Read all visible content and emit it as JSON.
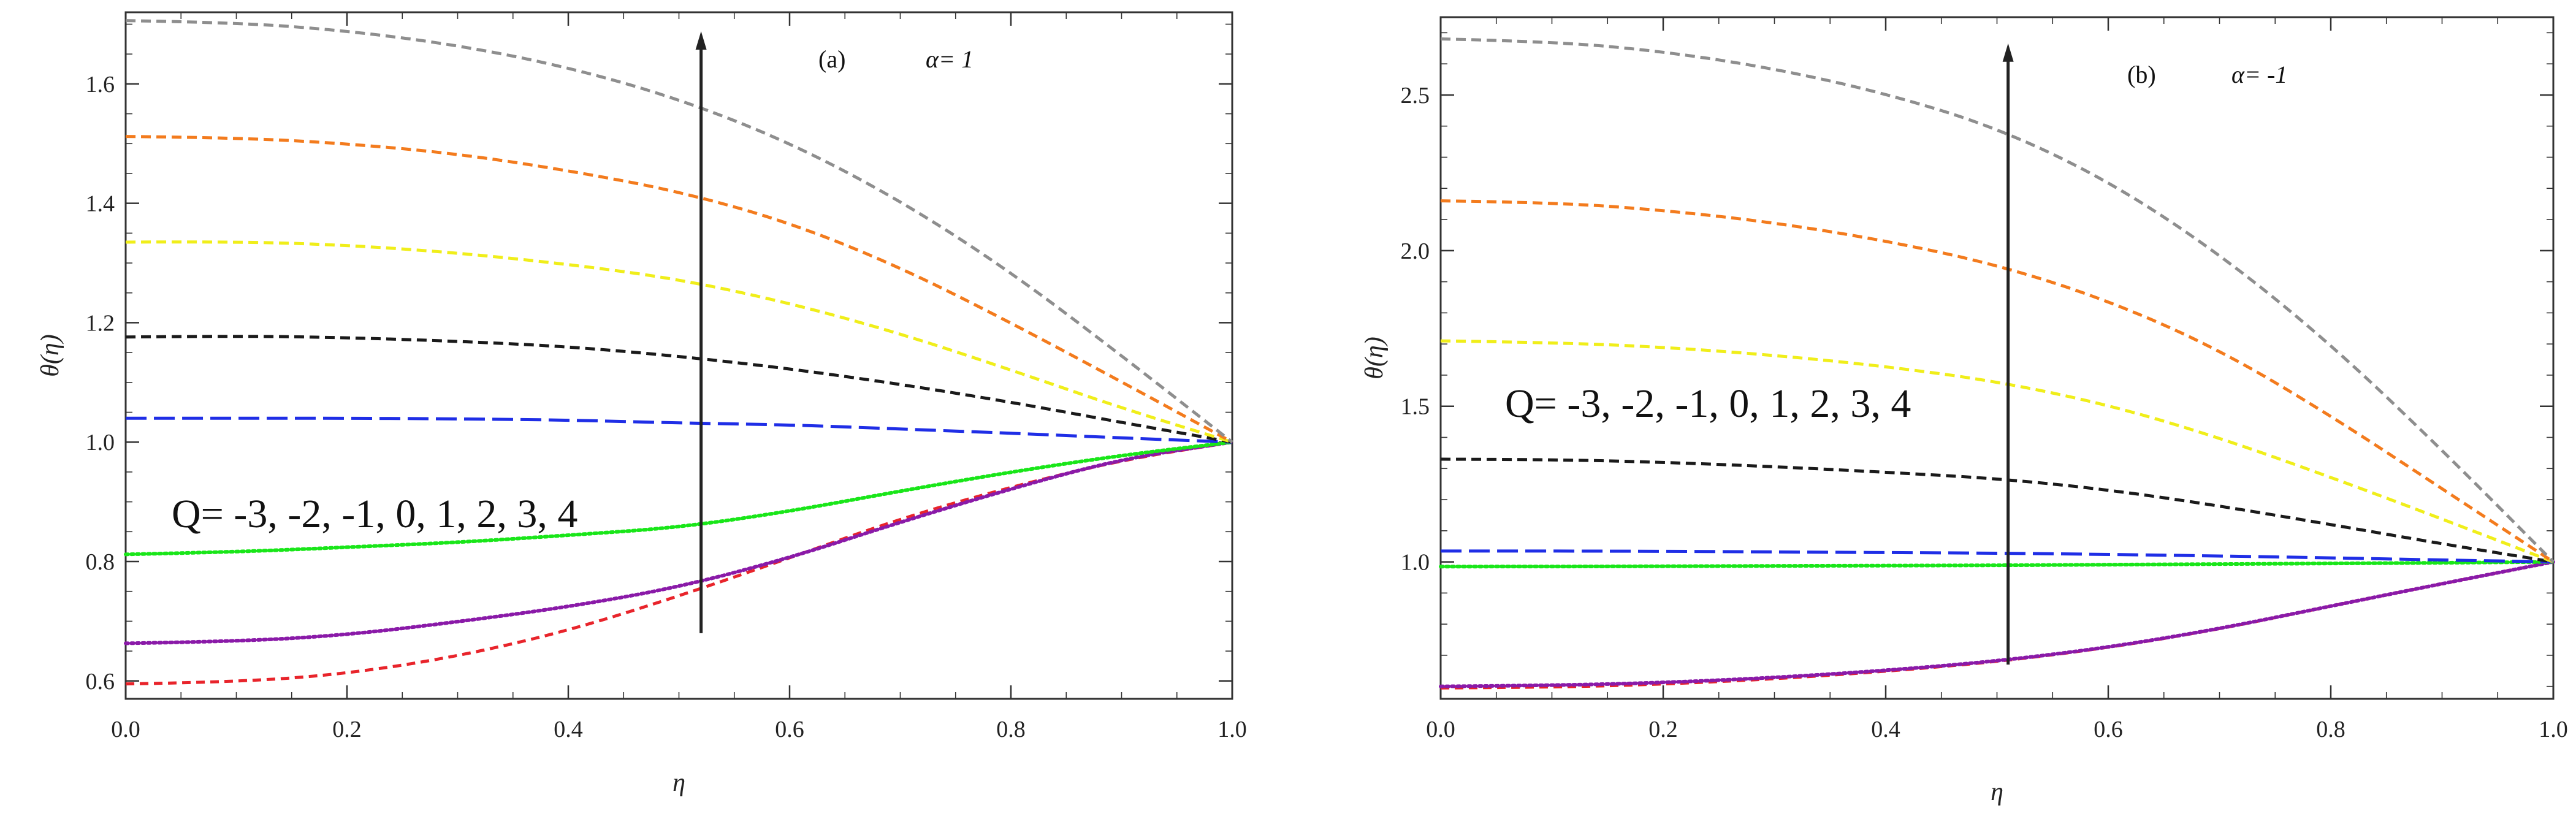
{
  "chart_data": [
    {
      "type": "line",
      "panel_label": "(a)",
      "alpha_label": "α= 1",
      "q_annotation": "Q= -3, -2, -1, 0, 1, 2, 3, 4",
      "xlabel": "η",
      "ylabel": "θ(η)",
      "xlim": [
        0.0,
        1.0
      ],
      "ylim": [
        0.57,
        1.72
      ],
      "xticks": [
        "0.0",
        "0.2",
        "0.4",
        "0.6",
        "0.8",
        "1.0"
      ],
      "yticks": [
        "0.6",
        "0.8",
        "1.0",
        "1.2",
        "1.4",
        "1.6"
      ],
      "arrow": {
        "x": 0.52,
        "y_from": 0.68,
        "y_to": 1.68
      },
      "series": [
        {
          "name": "Q=-3",
          "color": "#e8242b",
          "dash": "short",
          "values": [
            0.595,
            0.598,
            0.612,
            0.641,
            0.684,
            0.742,
            0.806,
            0.872,
            0.925,
            0.97,
            1.0
          ]
        },
        {
          "name": "Q=-2",
          "color": "#8a1aa8",
          "dash": "dot",
          "values": [
            0.663,
            0.666,
            0.677,
            0.699,
            0.724,
            0.757,
            0.806,
            0.866,
            0.922,
            0.972,
            1.0
          ]
        },
        {
          "name": "Q=-1",
          "color": "#19e619",
          "dash": "dot",
          "values": [
            0.812,
            0.816,
            0.824,
            0.832,
            0.844,
            0.857,
            0.884,
            0.918,
            0.95,
            0.978,
            1.0
          ]
        },
        {
          "name": "Q=0",
          "color": "#1f2ee6",
          "dash": "long",
          "values": [
            1.04,
            1.04,
            1.04,
            1.039,
            1.037,
            1.032,
            1.029,
            1.022,
            1.015,
            1.007,
            1.0
          ]
        },
        {
          "name": "Q=1",
          "color": "#1a1a1a",
          "dash": "medium",
          "values": [
            1.176,
            1.178,
            1.175,
            1.169,
            1.16,
            1.144,
            1.123,
            1.097,
            1.067,
            1.033,
            1.0
          ]
        },
        {
          "name": "Q=2",
          "color": "#f0ee1a",
          "dash": "medium",
          "values": [
            1.335,
            1.336,
            1.33,
            1.317,
            1.298,
            1.273,
            1.233,
            1.182,
            1.121,
            1.057,
            1.0
          ]
        },
        {
          "name": "Q=3",
          "color": "#f37b1d",
          "dash": "medium",
          "values": [
            1.512,
            1.51,
            1.5,
            1.483,
            1.455,
            1.42,
            1.368,
            1.293,
            1.2,
            1.101,
            1.0
          ]
        },
        {
          "name": "Q=4",
          "color": "#8e8e8e",
          "dash": "medium",
          "values": [
            1.706,
            1.703,
            1.689,
            1.665,
            1.628,
            1.575,
            1.502,
            1.405,
            1.285,
            1.145,
            1.0
          ]
        }
      ]
    },
    {
      "type": "line",
      "panel_label": "(b)",
      "alpha_label": "α= -1",
      "q_annotation": "Q= -3, -2, -1, 0, 1, 2, 3, 4",
      "xlabel": "η",
      "ylabel": "θ(η)",
      "xlim": [
        0.0,
        1.0
      ],
      "ylim": [
        0.56,
        2.75
      ],
      "xticks": [
        "0.0",
        "0.2",
        "0.4",
        "0.6",
        "0.8",
        "1.0"
      ],
      "yticks": [
        "1.0",
        "1.5",
        "2.0",
        "2.5"
      ],
      "arrow": {
        "x": 0.51,
        "y_from": 0.67,
        "y_to": 2.65
      },
      "series": [
        {
          "name": "Q=-3",
          "color": "#e8242b",
          "dash": "short",
          "values": [
            0.595,
            0.597,
            0.607,
            0.624,
            0.648,
            0.679,
            0.724,
            0.784,
            0.858,
            0.93,
            1.0
          ]
        },
        {
          "name": "Q=-2",
          "color": "#8a1aa8",
          "dash": "dot",
          "values": [
            0.6,
            0.603,
            0.612,
            0.628,
            0.651,
            0.681,
            0.725,
            0.785,
            0.858,
            0.93,
            1.0
          ]
        },
        {
          "name": "Q=-1",
          "color": "#19e619",
          "dash": "dot",
          "values": [
            0.985,
            0.985,
            0.986,
            0.987,
            0.988,
            0.989,
            0.991,
            0.993,
            0.995,
            0.997,
            1.0
          ]
        },
        {
          "name": "Q=0",
          "color": "#1f2ee6",
          "dash": "long",
          "values": [
            1.035,
            1.035,
            1.034,
            1.032,
            1.03,
            1.028,
            1.024,
            1.019,
            1.013,
            1.006,
            1.0
          ]
        },
        {
          "name": "Q=1",
          "color": "#1a1a1a",
          "dash": "medium",
          "values": [
            1.33,
            1.329,
            1.32,
            1.306,
            1.288,
            1.268,
            1.232,
            1.18,
            1.12,
            1.058,
            1.0
          ]
        },
        {
          "name": "Q=2",
          "color": "#f0ee1a",
          "dash": "medium",
          "values": [
            1.71,
            1.705,
            1.69,
            1.664,
            1.628,
            1.58,
            1.505,
            1.399,
            1.272,
            1.138,
            1.0
          ]
        },
        {
          "name": "Q=3",
          "color": "#f37b1d",
          "dash": "medium",
          "values": [
            2.16,
            2.155,
            2.13,
            2.09,
            2.032,
            1.955,
            1.84,
            1.682,
            1.47,
            1.235,
            1.0
          ]
        },
        {
          "name": "Q=4",
          "color": "#8e8e8e",
          "dash": "medium",
          "values": [
            2.68,
            2.672,
            2.64,
            2.585,
            2.505,
            2.395,
            2.225,
            1.99,
            1.7,
            1.36,
            1.0
          ]
        }
      ]
    }
  ]
}
